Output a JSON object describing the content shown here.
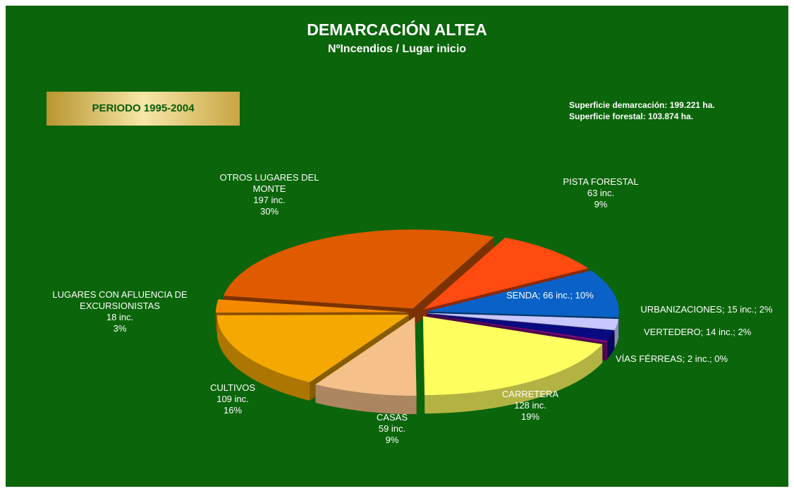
{
  "chart_data": {
    "type": "pie3d",
    "title": "DEMARCACIÓN  ALTEA",
    "subtitle": "NºIncendios / Lugar inicio",
    "period": "PERIODO 1995-2004",
    "notes": [
      "Superficie demarcación:  199.221 ha.",
      "Superficie forestal:  103.874 ha."
    ],
    "label_separator": ";",
    "categories": [
      "PISTA FORESTAL",
      "SENDA",
      "URBANIZACIONES",
      "VERTEDERO",
      "VÍAS FÉRREAS",
      "CARRETERA",
      "CASAS",
      "CULTIVOS",
      "LUGARES CON AFLUENCIA DE EXCURSIONISTAS",
      "OTROS LUGARES DEL MONTE"
    ],
    "values": [
      63,
      66,
      15,
      14,
      2,
      128,
      59,
      109,
      18,
      197
    ],
    "value_labels": [
      "63 inc.",
      "66 inc.",
      "15 inc.",
      "14 inc.",
      "2 inc.",
      "128 inc.",
      "59 inc.",
      "109 inc.",
      "18 inc.",
      "197 inc."
    ],
    "percents": [
      9,
      10,
      2,
      2,
      0,
      19,
      9,
      16,
      3,
      30
    ],
    "percent_labels": [
      "9%",
      "10%",
      "2%",
      "2%",
      "0%",
      "19%",
      "9%",
      "16%",
      "3%",
      "30%"
    ],
    "colors": [
      "#ff4a10",
      "#0a62c8",
      "#c8c8ff",
      "#0a0a80",
      "#8a0a8a",
      "#ffff60",
      "#f5c08a",
      "#f5a800",
      "#f58a00",
      "#e05a00"
    ]
  }
}
